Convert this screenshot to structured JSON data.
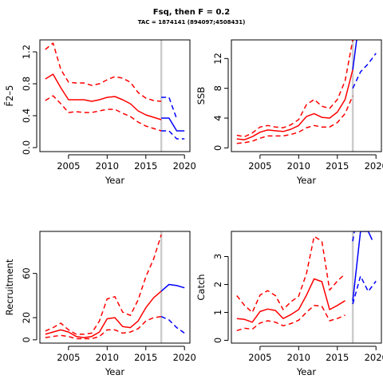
{
  "header": {
    "title": "Fsq, then F = 0.2",
    "subtitle": "TAC = 1874141 (894097;4508431)"
  },
  "colors": {
    "historical": "#ff0000",
    "projection": "#0000ff",
    "divider": "#cccccc"
  },
  "chart_data": [
    {
      "type": "line",
      "title": "",
      "xlabel": "Year",
      "ylabel": "F̄2–5",
      "xlim": [
        2001.3,
        2020.7
      ],
      "ylim": [
        -0.05,
        1.35
      ],
      "xticks": [
        2005,
        2010,
        2015,
        2020
      ],
      "yticks": [
        0.0,
        0.4,
        0.8,
        1.2
      ],
      "ytick_labels": [
        "0.0",
        "0.4",
        "0.8",
        "1.2"
      ],
      "divider_x": 2017,
      "series": [
        {
          "role": "historical-median",
          "x": [
            2002,
            2003,
            2004,
            2005,
            2006,
            2007,
            2008,
            2009,
            2010,
            2011,
            2012,
            2013,
            2014,
            2015,
            2016,
            2017
          ],
          "y": [
            0.86,
            0.92,
            0.75,
            0.6,
            0.6,
            0.6,
            0.58,
            0.6,
            0.63,
            0.64,
            0.6,
            0.55,
            0.46,
            0.41,
            0.38,
            0.35
          ]
        },
        {
          "role": "historical-upper",
          "x": [
            2002,
            2003,
            2004,
            2005,
            2006,
            2007,
            2008,
            2009,
            2010,
            2011,
            2012,
            2013,
            2014,
            2015,
            2016,
            2017
          ],
          "y": [
            1.23,
            1.31,
            0.98,
            0.82,
            0.81,
            0.81,
            0.78,
            0.8,
            0.85,
            0.89,
            0.87,
            0.82,
            0.69,
            0.62,
            0.59,
            0.58
          ]
        },
        {
          "role": "historical-lower",
          "x": [
            2002,
            2003,
            2004,
            2005,
            2006,
            2007,
            2008,
            2009,
            2010,
            2011,
            2012,
            2013,
            2014,
            2015,
            2016,
            2017
          ],
          "y": [
            0.59,
            0.65,
            0.55,
            0.44,
            0.45,
            0.44,
            0.44,
            0.46,
            0.48,
            0.48,
            0.43,
            0.39,
            0.32,
            0.27,
            0.24,
            0.21
          ]
        },
        {
          "role": "projection-median",
          "x": [
            2017,
            2018,
            2019,
            2020
          ],
          "y": [
            0.37,
            0.37,
            0.21,
            0.21
          ]
        },
        {
          "role": "projection-upper",
          "x": [
            2017,
            2018,
            2019
          ],
          "y": [
            0.63,
            0.63,
            0.36
          ]
        },
        {
          "role": "projection-lower",
          "x": [
            2017,
            2018,
            2019,
            2020
          ],
          "y": [
            0.21,
            0.21,
            0.11,
            0.11
          ]
        }
      ]
    },
    {
      "type": "line",
      "title": "",
      "xlabel": "Year",
      "ylabel": "SSB",
      "xlim": [
        2001.3,
        2020.7
      ],
      "ylim": [
        -0.5,
        14.5
      ],
      "xticks": [
        2005,
        2010,
        2015,
        2020
      ],
      "yticks": [
        0,
        4,
        8,
        12
      ],
      "ytick_labels": [
        "0",
        "4",
        "8",
        "12"
      ],
      "divider_x": 2017,
      "series": [
        {
          "role": "historical-median",
          "x": [
            2002,
            2003,
            2004,
            2005,
            2006,
            2007,
            2008,
            2009,
            2010,
            2011,
            2012,
            2013,
            2014,
            2015,
            2016,
            2017
          ],
          "y": [
            1.2,
            1.1,
            1.5,
            2.1,
            2.4,
            2.3,
            2.2,
            2.5,
            3.0,
            4.2,
            4.6,
            4.1,
            4.0,
            4.8,
            6.5,
            10.5
          ]
        },
        {
          "role": "historical-upper",
          "x": [
            2002,
            2003,
            2004,
            2005,
            2006,
            2007,
            2008,
            2009,
            2010,
            2011,
            2012,
            2013,
            2014,
            2015,
            2016,
            2017
          ],
          "y": [
            1.7,
            1.5,
            2.0,
            2.8,
            3.0,
            2.8,
            2.7,
            3.1,
            3.8,
            5.8,
            6.5,
            5.6,
            5.3,
            6.5,
            9.0,
            14.5
          ]
        },
        {
          "role": "historical-lower",
          "x": [
            2002,
            2003,
            2004,
            2005,
            2006,
            2007,
            2008,
            2009,
            2010,
            2011,
            2012,
            2013,
            2014,
            2015,
            2016,
            2017
          ],
          "y": [
            0.6,
            0.7,
            0.9,
            1.3,
            1.6,
            1.6,
            1.6,
            1.8,
            2.1,
            2.7,
            3.0,
            2.8,
            2.8,
            3.4,
            4.6,
            7.0
          ]
        },
        {
          "role": "projection-median",
          "x": [
            2017,
            2017.5
          ],
          "y": [
            10.5,
            14.5
          ]
        },
        {
          "role": "projection-upper",
          "x": [],
          "y": []
        },
        {
          "role": "projection-lower",
          "x": [
            2017,
            2018,
            2019,
            2020
          ],
          "y": [
            8.0,
            10.2,
            11.3,
            12.7
          ]
        }
      ]
    },
    {
      "type": "line",
      "title": "",
      "xlabel": "Year",
      "ylabel": "Recruitment",
      "xlim": [
        2001.3,
        2020.7
      ],
      "ylim": [
        -3,
        98
      ],
      "xticks": [
        2005,
        2010,
        2015,
        2020
      ],
      "yticks": [
        0,
        20,
        60
      ],
      "ytick_labels": [
        "0",
        "20",
        "60"
      ],
      "divider_x": 2017,
      "series": [
        {
          "role": "historical-median",
          "x": [
            2002,
            2003,
            2004,
            2005,
            2006,
            2007,
            2008,
            2009,
            2010,
            2011,
            2012,
            2013,
            2014,
            2015,
            2016,
            2017
          ],
          "y": [
            5,
            7,
            9,
            7,
            3,
            2,
            3,
            7,
            19,
            20,
            12,
            11,
            17,
            29,
            38,
            44
          ]
        },
        {
          "role": "historical-upper",
          "x": [
            2002,
            2003,
            2004,
            2005,
            2006,
            2007,
            2008,
            2009,
            2010,
            2011,
            2012,
            2013,
            2014,
            2015,
            2016,
            2017
          ],
          "y": [
            8,
            11,
            15,
            9,
            5,
            5,
            6,
            17,
            37,
            39,
            25,
            22,
            36,
            57,
            73,
            95
          ]
        },
        {
          "role": "historical-lower",
          "x": [
            2002,
            2003,
            2004,
            2005,
            2006,
            2007,
            2008,
            2009,
            2010,
            2011,
            2012,
            2013,
            2014,
            2015,
            2016,
            2017
          ],
          "y": [
            2,
            3,
            4,
            3,
            1,
            1,
            1,
            3,
            9,
            9,
            6,
            7,
            10,
            17,
            20,
            21
          ]
        },
        {
          "role": "projection-median",
          "x": [
            2017,
            2018,
            2019,
            2020
          ],
          "y": [
            44,
            50,
            49,
            47
          ]
        },
        {
          "role": "projection-upper",
          "x": [],
          "y": []
        },
        {
          "role": "projection-lower",
          "x": [
            2017,
            2018,
            2019,
            2020
          ],
          "y": [
            21,
            18,
            11,
            6
          ]
        }
      ]
    },
    {
      "type": "line",
      "title": "",
      "xlabel": "Year",
      "ylabel": "Catch",
      "xlim": [
        2001.3,
        2020.7
      ],
      "ylim": [
        -0.1,
        3.9
      ],
      "xticks": [
        2005,
        2010,
        2015,
        2020
      ],
      "yticks": [
        0,
        1,
        2,
        3
      ],
      "ytick_labels": [
        "0",
        "1",
        "2",
        "3"
      ],
      "divider_x": 2017,
      "series": [
        {
          "role": "historical-median",
          "x": [
            2002,
            2003,
            2004,
            2005,
            2006,
            2007,
            2008,
            2009,
            2010,
            2011,
            2012,
            2013,
            2014,
            2015,
            2016
          ],
          "y": [
            0.78,
            0.75,
            0.65,
            1.03,
            1.12,
            1.07,
            0.78,
            0.92,
            1.1,
            1.61,
            2.2,
            2.1,
            1.1,
            1.25,
            1.42
          ]
        },
        {
          "role": "historical-upper",
          "x": [
            2002,
            2003,
            2004,
            2005,
            2006,
            2007,
            2008,
            2009,
            2010,
            2011,
            2012,
            2013,
            2014,
            2015,
            2016
          ],
          "y": [
            1.6,
            1.25,
            1.0,
            1.62,
            1.78,
            1.6,
            1.1,
            1.38,
            1.58,
            2.38,
            3.72,
            3.55,
            1.8,
            2.12,
            2.38
          ]
        },
        {
          "role": "historical-lower",
          "x": [
            2002,
            2003,
            2004,
            2005,
            2006,
            2007,
            2008,
            2009,
            2010,
            2011,
            2012,
            2013,
            2014,
            2015,
            2016
          ],
          "y": [
            0.35,
            0.43,
            0.4,
            0.62,
            0.7,
            0.65,
            0.52,
            0.6,
            0.72,
            1.0,
            1.25,
            1.22,
            0.7,
            0.78,
            0.9
          ]
        },
        {
          "role": "projection-median",
          "x": [
            2017,
            2018,
            2019,
            2019.5
          ],
          "y": [
            1.4,
            3.9,
            3.9,
            3.6
          ]
        },
        {
          "role": "projection-upper",
          "x": [
            2017,
            2017.2
          ],
          "y": [
            3.55,
            3.9
          ]
        },
        {
          "role": "projection-lower",
          "x": [
            2017,
            2018,
            2019,
            2020
          ],
          "y": [
            1.3,
            2.3,
            1.75,
            2.12
          ]
        }
      ]
    }
  ]
}
